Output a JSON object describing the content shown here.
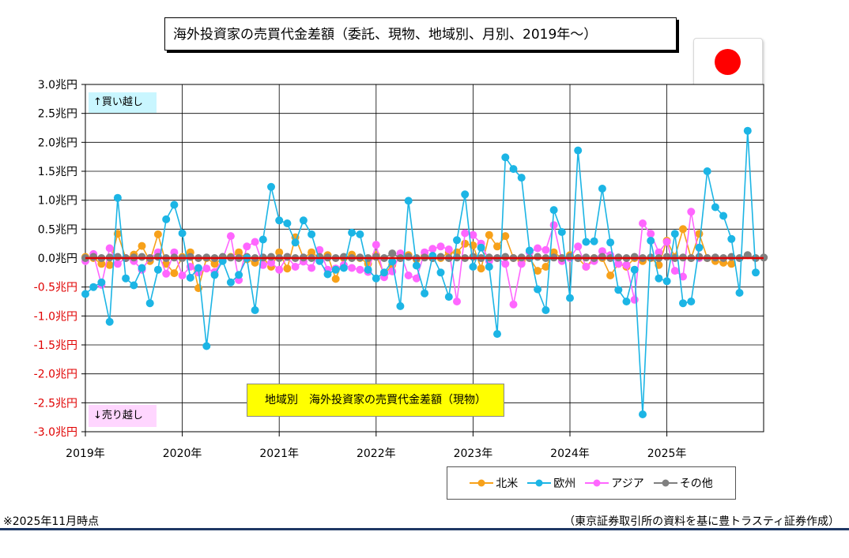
{
  "title": "海外投資家の売買代金差額（委託、現物、地域別、月別、2019年～）",
  "subtitle": "地域別　海外投資家の売買代金差額（現物）",
  "buy_label": "↑買い越し",
  "sell_label": "↓売り越し",
  "footnote": "※2025年11月時点",
  "source": "（東京証券取引所の資料を基に豊トラスティ証券作成）",
  "colors": {
    "north_america": "#f7a11a",
    "europe": "#1cb5e5",
    "asia": "#ff66ff",
    "other": "#808080",
    "zero_line": "#e00000",
    "negative_tick": "#e00000",
    "flag_red": "#ff0000"
  },
  "chart_data": {
    "type": "line",
    "x_tick_labels": [
      "2019年",
      "2020年",
      "2021年",
      "2022年",
      "2023年",
      "2024年",
      "2025年"
    ],
    "y_ticks": [
      3.0,
      2.5,
      2.0,
      1.5,
      1.0,
      0.5,
      0.0,
      -0.5,
      -1.0,
      -1.5,
      -2.0,
      -2.5,
      -3.0
    ],
    "y_tick_labels": [
      "3.0兆円",
      "2.5兆円",
      "2.0兆円",
      "1.5兆円",
      "1.0兆円",
      "0.5兆円",
      "0.0兆円",
      "-0.5兆円",
      "-1.0兆円",
      "-1.5兆円",
      "-2.0兆円",
      "-2.5兆円",
      "-3.0兆円"
    ],
    "ylim": [
      -3.0,
      3.0
    ],
    "grid": true,
    "legend_position": "bottom-right",
    "series": [
      {
        "name": "北米",
        "key": "north_america",
        "values": [
          0.02,
          0.0,
          -0.1,
          -0.12,
          0.42,
          0.0,
          0.06,
          0.21,
          -0.05,
          0.41,
          -0.1,
          -0.26,
          0.02,
          0.1,
          -0.52,
          0.0,
          -0.1,
          0.0,
          0.02,
          0.1,
          -0.02,
          -0.08,
          0.0,
          -0.15,
          0.1,
          -0.18,
          0.36,
          0.0,
          0.1,
          0.0,
          0.05,
          -0.36,
          0.0,
          0.06,
          0.0,
          -0.1,
          0.05,
          -0.28,
          -0.12,
          0.0,
          0.05,
          -0.02,
          0.04,
          0.0,
          0.0,
          0.1,
          0.1,
          0.25,
          0.22,
          -0.18,
          0.4,
          0.2,
          0.38,
          0.0,
          -0.05,
          0.0,
          -0.22,
          -0.15,
          0.1,
          0.0,
          0.05,
          0.0,
          -0.15,
          0.0,
          0.0,
          -0.3,
          -0.1,
          -0.15,
          0.0,
          -0.05,
          0.0,
          -0.12,
          0.3,
          0.02,
          0.5,
          0.0,
          0.42,
          0.0,
          -0.05,
          -0.08,
          -0.1
        ]
      },
      {
        "name": "欧州",
        "key": "europe",
        "values": [
          -0.62,
          -0.5,
          -0.42,
          -1.1,
          1.04,
          -0.35,
          -0.47,
          -0.17,
          -0.78,
          -0.2,
          0.67,
          0.92,
          0.43,
          -0.34,
          -0.17,
          -1.52,
          -0.29,
          -0.05,
          -0.42,
          -0.29,
          0.0,
          -0.9,
          0.32,
          1.23,
          0.65,
          0.6,
          0.27,
          0.65,
          0.41,
          -0.05,
          -0.28,
          -0.2,
          -0.17,
          0.44,
          0.41,
          -0.2,
          -0.35,
          -0.25,
          -0.06,
          -0.83,
          0.99,
          -0.13,
          -0.61,
          0.04,
          -0.25,
          -0.67,
          0.31,
          1.1,
          -0.15,
          0.18,
          -0.15,
          -1.31,
          1.74,
          1.54,
          1.39,
          0.13,
          -0.54,
          -0.9,
          0.83,
          0.45,
          -0.69,
          1.86,
          0.28,
          0.29,
          1.2,
          0.27,
          -0.55,
          -0.75,
          -0.2,
          -2.7,
          0.3,
          -0.35,
          -0.4,
          0.42,
          -0.78,
          -0.75,
          0.18,
          1.5,
          0.88,
          0.73,
          0.33,
          -0.6,
          2.2,
          -0.25
        ]
      },
      {
        "name": "アジア",
        "key": "asia",
        "values": [
          -0.05,
          0.07,
          -0.46,
          0.17,
          -0.1,
          0.0,
          -0.05,
          -0.2,
          0.0,
          0.1,
          -0.27,
          0.1,
          -0.3,
          -0.15,
          -0.25,
          -0.18,
          -0.24,
          -0.02,
          0.38,
          -0.38,
          0.2,
          0.28,
          -0.12,
          -0.08,
          -0.2,
          0.02,
          -0.15,
          -0.06,
          -0.17,
          0.14,
          -0.2,
          -0.18,
          -0.12,
          -0.17,
          -0.2,
          -0.24,
          0.23,
          -0.33,
          -0.23,
          0.08,
          -0.3,
          -0.35,
          0.1,
          0.16,
          0.2,
          0.15,
          -0.75,
          0.43,
          0.4,
          0.25,
          -0.05,
          0.0,
          -0.1,
          -0.8,
          -0.1,
          0.1,
          0.17,
          0.14,
          0.57,
          -0.05,
          0.0,
          0.2,
          -0.15,
          -0.05,
          0.12,
          0.05,
          -0.1,
          -0.12,
          -0.72,
          0.6,
          0.42,
          0.1,
          0.28,
          -0.22,
          -0.32,
          0.8,
          0.0
        ]
      },
      {
        "name": "その他",
        "key": "other",
        "values": [
          0.0,
          0.02,
          0.0,
          0.01,
          0.02,
          0.0,
          0.01,
          0.02,
          0.0,
          0.02,
          0.0,
          0.01,
          0.0,
          0.02,
          0.0,
          0.01,
          0.0,
          0.02,
          0.01,
          0.0,
          0.02,
          0.0,
          0.01,
          0.02,
          0.0,
          0.02,
          0.0,
          0.01,
          0.0,
          0.02,
          0.01,
          0.0,
          0.02,
          0.0,
          0.01,
          0.0,
          0.02,
          0.0,
          0.08,
          0.0,
          0.02,
          0.0,
          0.01,
          0.0,
          0.02,
          0.0,
          0.01,
          0.0,
          0.02,
          0.0,
          0.01,
          0.0,
          0.02,
          0.0,
          0.01,
          0.0,
          0.02,
          0.0,
          0.01,
          0.0,
          0.02,
          0.0,
          0.01,
          0.0,
          0.02,
          0.0,
          0.01,
          0.0,
          0.02,
          0.0,
          0.01,
          0.0,
          0.02,
          0.0,
          0.01,
          0.0,
          0.02,
          0.0,
          0.01,
          0.0,
          0.02,
          0.0,
          0.05,
          0.0,
          0.01
        ]
      }
    ]
  }
}
